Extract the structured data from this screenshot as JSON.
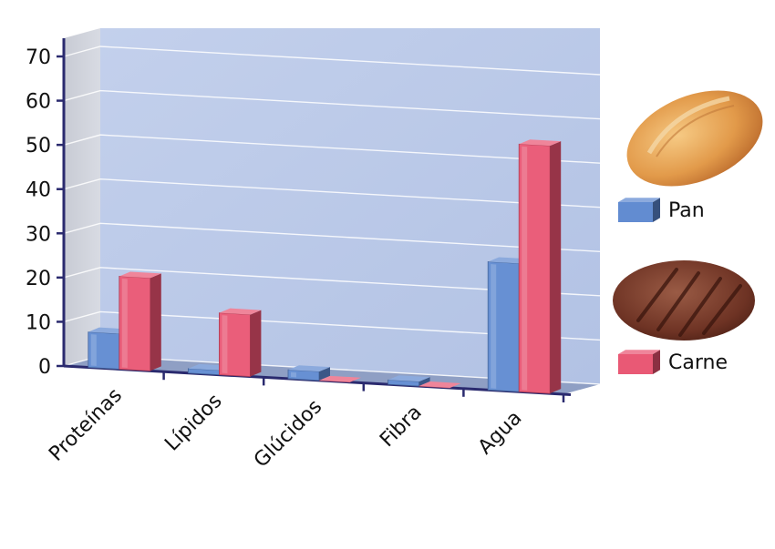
{
  "chart_data": {
    "type": "bar",
    "title": "",
    "xlabel": "",
    "ylabel": "",
    "ylim": [
      0,
      70
    ],
    "yticks": [
      "0",
      "10",
      "20",
      "30",
      "40",
      "50",
      "60",
      "70"
    ],
    "categories": [
      "Proteínas",
      "Lípidos",
      "Glúcidos",
      "Fibra",
      "Agua"
    ],
    "series": [
      {
        "name": "Pan",
        "values": [
          8,
          1,
          2,
          1,
          29
        ],
        "color": "#5a86cf"
      },
      {
        "name": "Carne",
        "values": [
          21,
          14,
          0,
          0,
          56
        ],
        "color": "#e8506e"
      }
    ],
    "grid": true,
    "legend_position": "right",
    "legend_icons": [
      "bread-icon",
      "meat-patty-icon"
    ]
  }
}
